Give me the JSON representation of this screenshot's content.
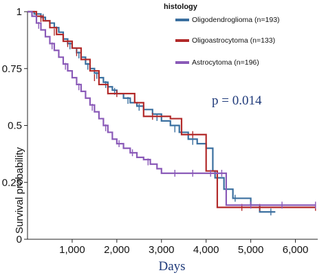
{
  "chart_data": {
    "type": "line",
    "title": "",
    "xlabel": "Days",
    "ylabel": "Survival probability",
    "xlim": [
      0,
      6500
    ],
    "ylim": [
      0,
      1
    ],
    "x_ticks": [
      1000,
      2000,
      3000,
      4000,
      5000,
      6000
    ],
    "x_tick_labels": [
      "1,000",
      "2,000",
      "3,000",
      "4,000",
      "5,000",
      "6,000"
    ],
    "y_ticks": [
      0,
      0.25,
      0.5,
      0.75,
      1
    ],
    "y_tick_labels": [
      "0",
      "0.25",
      "0.5",
      "0.75",
      "1"
    ],
    "grid": false,
    "legend_title": "histology",
    "legend_position": "top-right",
    "annotation": "p = 0.014",
    "annotation_color": "#1f3a7a",
    "series": [
      {
        "name": "Oligodendroglioma (n=193)",
        "color": "#3a6f9f",
        "steps": [
          [
            0,
            1
          ],
          [
            150,
            0.99
          ],
          [
            300,
            0.975
          ],
          [
            400,
            0.96
          ],
          [
            500,
            0.95
          ],
          [
            600,
            0.93
          ],
          [
            700,
            0.91
          ],
          [
            800,
            0.88
          ],
          [
            900,
            0.86
          ],
          [
            1000,
            0.84
          ],
          [
            1100,
            0.82
          ],
          [
            1200,
            0.8
          ],
          [
            1300,
            0.77
          ],
          [
            1400,
            0.75
          ],
          [
            1500,
            0.73
          ],
          [
            1600,
            0.71
          ],
          [
            1700,
            0.69
          ],
          [
            1800,
            0.67
          ],
          [
            1900,
            0.655
          ],
          [
            2000,
            0.64
          ],
          [
            2150,
            0.62
          ],
          [
            2300,
            0.6
          ],
          [
            2450,
            0.585
          ],
          [
            2600,
            0.57
          ],
          [
            2800,
            0.55
          ],
          [
            3000,
            0.52
          ],
          [
            3200,
            0.5
          ],
          [
            3400,
            0.47
          ],
          [
            3600,
            0.44
          ],
          [
            3800,
            0.42
          ],
          [
            4000,
            0.4
          ],
          [
            4150,
            0.3
          ],
          [
            4200,
            0.27
          ],
          [
            4400,
            0.22
          ],
          [
            4600,
            0.18
          ],
          [
            5000,
            0.15
          ],
          [
            5200,
            0.12
          ],
          [
            5550,
            0.12
          ]
        ],
        "censor": [
          [
            350,
            0.975
          ],
          [
            650,
            0.92
          ],
          [
            950,
            0.85
          ],
          [
            1150,
            0.81
          ],
          [
            1350,
            0.76
          ],
          [
            1550,
            0.72
          ],
          [
            1750,
            0.68
          ],
          [
            1950,
            0.65
          ],
          [
            2250,
            0.61
          ],
          [
            2500,
            0.58
          ],
          [
            2900,
            0.535
          ],
          [
            3300,
            0.485
          ],
          [
            3700,
            0.43
          ],
          [
            4450,
            0.22
          ],
          [
            4650,
            0.18
          ],
          [
            5450,
            0.12
          ]
        ]
      },
      {
        "name": "Oligoastrocytoma (n=133)",
        "color": "#b22a2a",
        "steps": [
          [
            0,
            1
          ],
          [
            200,
            0.98
          ],
          [
            350,
            0.96
          ],
          [
            500,
            0.93
          ],
          [
            650,
            0.9
          ],
          [
            800,
            0.87
          ],
          [
            1000,
            0.84
          ],
          [
            1200,
            0.79
          ],
          [
            1400,
            0.74
          ],
          [
            1600,
            0.68
          ],
          [
            1800,
            0.64
          ],
          [
            2200,
            0.64
          ],
          [
            2400,
            0.6
          ],
          [
            2600,
            0.54
          ],
          [
            3000,
            0.54
          ],
          [
            3200,
            0.53
          ],
          [
            3450,
            0.46
          ],
          [
            3950,
            0.46
          ],
          [
            4000,
            0.3
          ],
          [
            4200,
            0.3
          ],
          [
            4250,
            0.14
          ],
          [
            6450,
            0.14
          ]
        ],
        "censor": [
          [
            300,
            0.97
          ],
          [
            600,
            0.91
          ],
          [
            900,
            0.86
          ],
          [
            1100,
            0.82
          ],
          [
            1500,
            0.71
          ],
          [
            2000,
            0.64
          ],
          [
            2800,
            0.54
          ],
          [
            3700,
            0.46
          ],
          [
            4800,
            0.14
          ],
          [
            5200,
            0.14
          ],
          [
            6450,
            0.14
          ]
        ]
      },
      {
        "name": "Astrocytoma (n=196)",
        "color": "#8a5ab8",
        "steps": [
          [
            0,
            1
          ],
          [
            100,
            0.98
          ],
          [
            200,
            0.95
          ],
          [
            300,
            0.92
          ],
          [
            400,
            0.89
          ],
          [
            500,
            0.86
          ],
          [
            600,
            0.83
          ],
          [
            700,
            0.8
          ],
          [
            800,
            0.77
          ],
          [
            900,
            0.74
          ],
          [
            1000,
            0.71
          ],
          [
            1100,
            0.68
          ],
          [
            1200,
            0.65
          ],
          [
            1300,
            0.62
          ],
          [
            1400,
            0.59
          ],
          [
            1500,
            0.56
          ],
          [
            1600,
            0.53
          ],
          [
            1700,
            0.5
          ],
          [
            1800,
            0.47
          ],
          [
            1900,
            0.44
          ],
          [
            2000,
            0.42
          ],
          [
            2150,
            0.4
          ],
          [
            2300,
            0.38
          ],
          [
            2450,
            0.36
          ],
          [
            2600,
            0.35
          ],
          [
            2750,
            0.33
          ],
          [
            2900,
            0.31
          ],
          [
            3000,
            0.29
          ],
          [
            4400,
            0.29
          ],
          [
            4450,
            0.15
          ],
          [
            6450,
            0.15
          ]
        ],
        "censor": [
          [
            250,
            0.94
          ],
          [
            550,
            0.85
          ],
          [
            850,
            0.76
          ],
          [
            1150,
            0.67
          ],
          [
            1450,
            0.58
          ],
          [
            1750,
            0.49
          ],
          [
            2050,
            0.42
          ],
          [
            2350,
            0.38
          ],
          [
            2700,
            0.34
          ],
          [
            3300,
            0.29
          ],
          [
            3700,
            0.29
          ],
          [
            4100,
            0.29
          ],
          [
            4350,
            0.29
          ],
          [
            5000,
            0.15
          ],
          [
            5700,
            0.15
          ],
          [
            6450,
            0.15
          ]
        ]
      }
    ]
  }
}
